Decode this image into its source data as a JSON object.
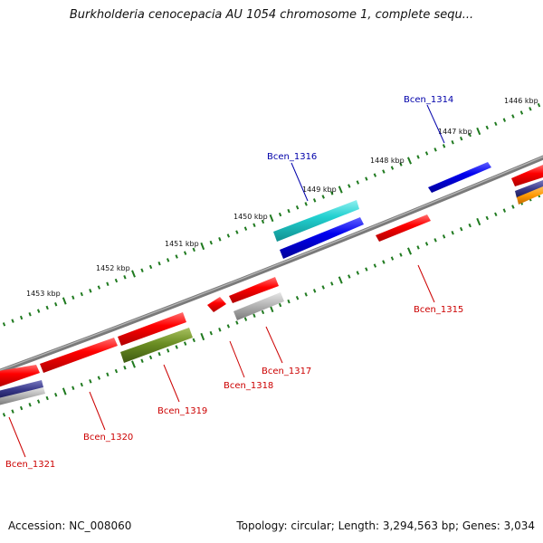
{
  "title": "Burkholderia cenocepacia AU 1054 chromosome 1, complete sequ...",
  "footer": {
    "accession": "Accession: NC_008060",
    "summary": "Topology: circular; Length: 3,294,563 bp; Genes: 3,034"
  },
  "kbp_labels": [
    "1446 kbp",
    "1447 kbp",
    "1448 kbp",
    "1449 kbp",
    "1450 kbp",
    "1451 kbp",
    "1452 kbp",
    "1453 kbp"
  ],
  "gene_labels": [
    {
      "text": "Bcen_1314",
      "color": "#0000aa"
    },
    {
      "text": "Bcen_1315",
      "color": "#cc0000"
    },
    {
      "text": "Bcen_1316",
      "color": "#0000aa"
    },
    {
      "text": "Bcen_1317",
      "color": "#cc0000"
    },
    {
      "text": "Bcen_1318",
      "color": "#cc0000"
    },
    {
      "text": "Bcen_1319",
      "color": "#cc0000"
    },
    {
      "text": "Bcen_1320",
      "color": "#cc0000"
    },
    {
      "text": "Bcen_1321",
      "color": "#cc0000"
    }
  ],
  "colors": {
    "backbone": "#8a8a8a",
    "tick": "#1f7a1f",
    "red": "#ff0000",
    "blue": "#0000ee",
    "cyan": "#22d0d0",
    "gray": "#b0b0b0",
    "olive": "#6b8e23",
    "orange": "#ff9900",
    "navy": "#3a3a8a"
  }
}
